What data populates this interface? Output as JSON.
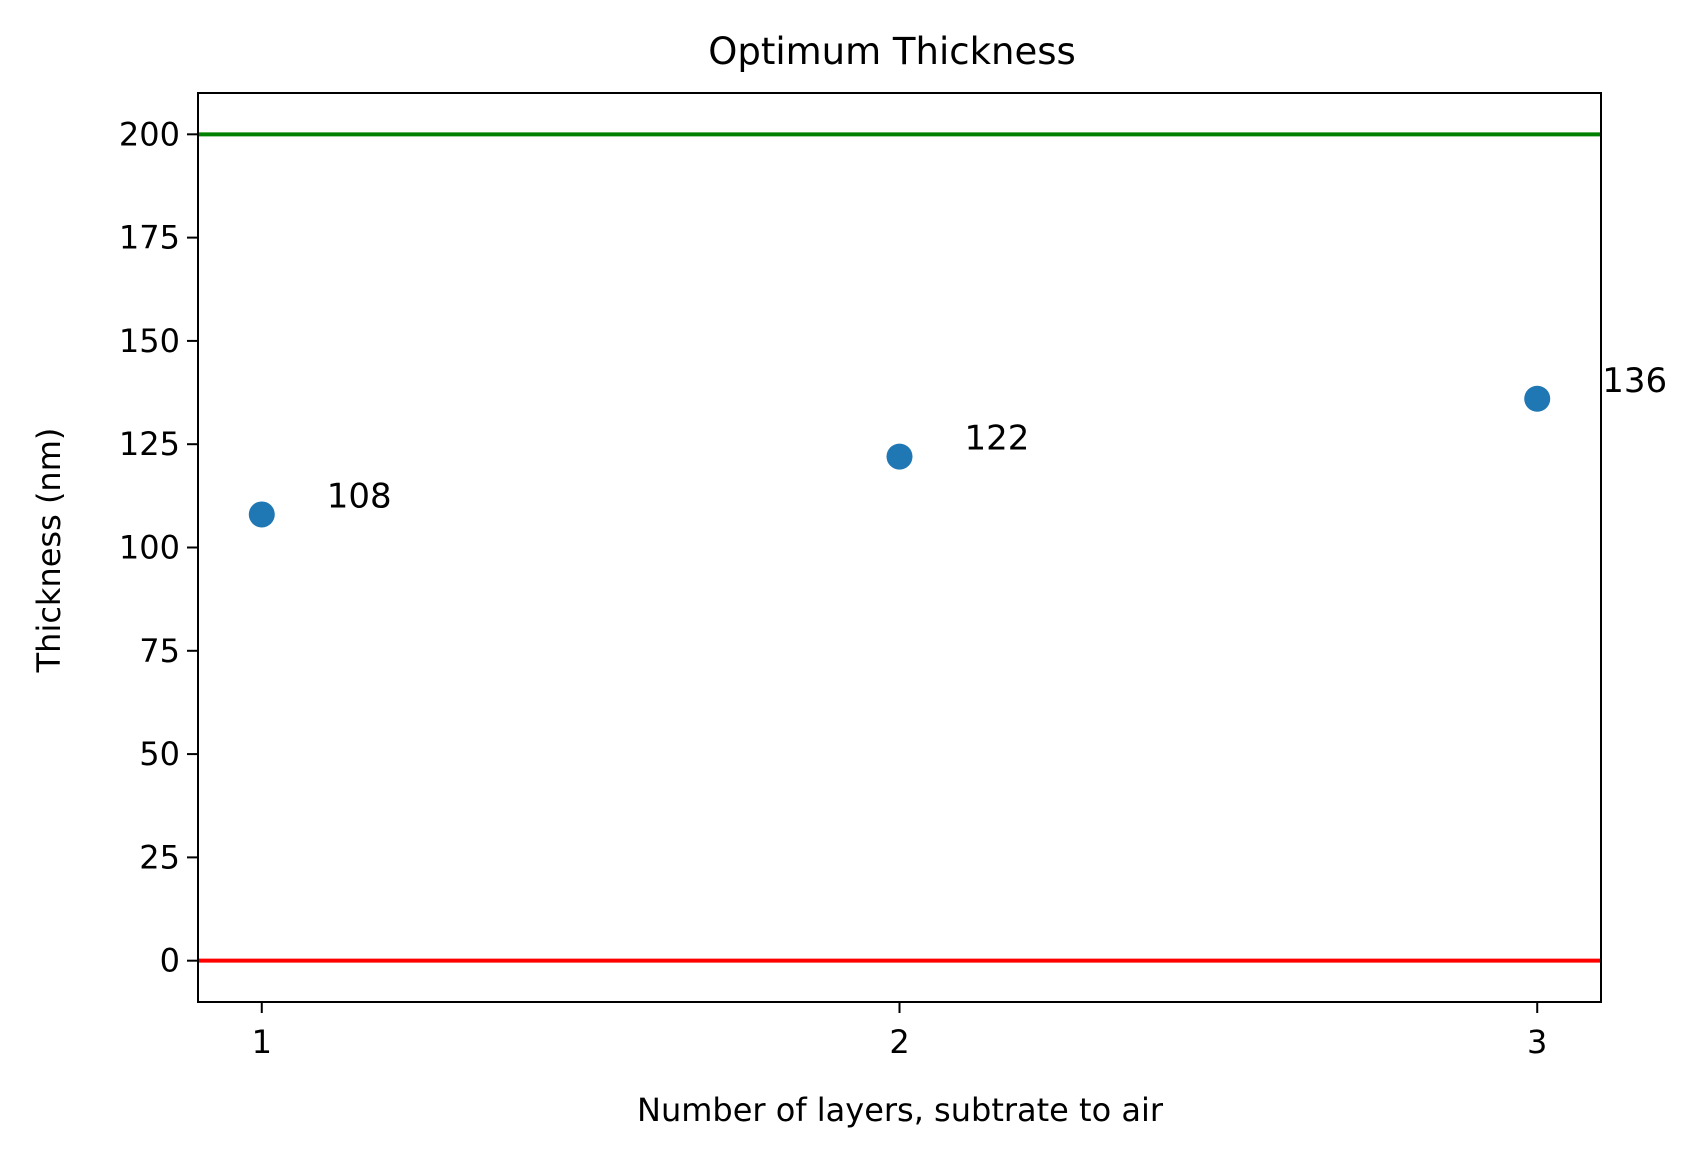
{
  "chart_data": {
    "type": "scatter",
    "title": "Optimum Thickness",
    "xlabel": "Number of layers, subtrate to air",
    "ylabel": "Thickness (nm)",
    "xlim": [
      0.9,
      3.1
    ],
    "ylim": [
      -10,
      210
    ],
    "x_ticks": [
      1,
      2,
      3
    ],
    "y_ticks": [
      0,
      25,
      50,
      75,
      100,
      125,
      150,
      175,
      200
    ],
    "grid": false,
    "series": [
      {
        "x": [
          1,
          2,
          3
        ],
        "y": [
          108,
          122,
          136
        ],
        "labels": [
          "108",
          "122",
          "136"
        ],
        "color": "#1f77b4"
      }
    ],
    "reference_lines": [
      {
        "y": 200,
        "color": "#008000"
      },
      {
        "y": 0,
        "color": "#ff0000"
      }
    ]
  }
}
